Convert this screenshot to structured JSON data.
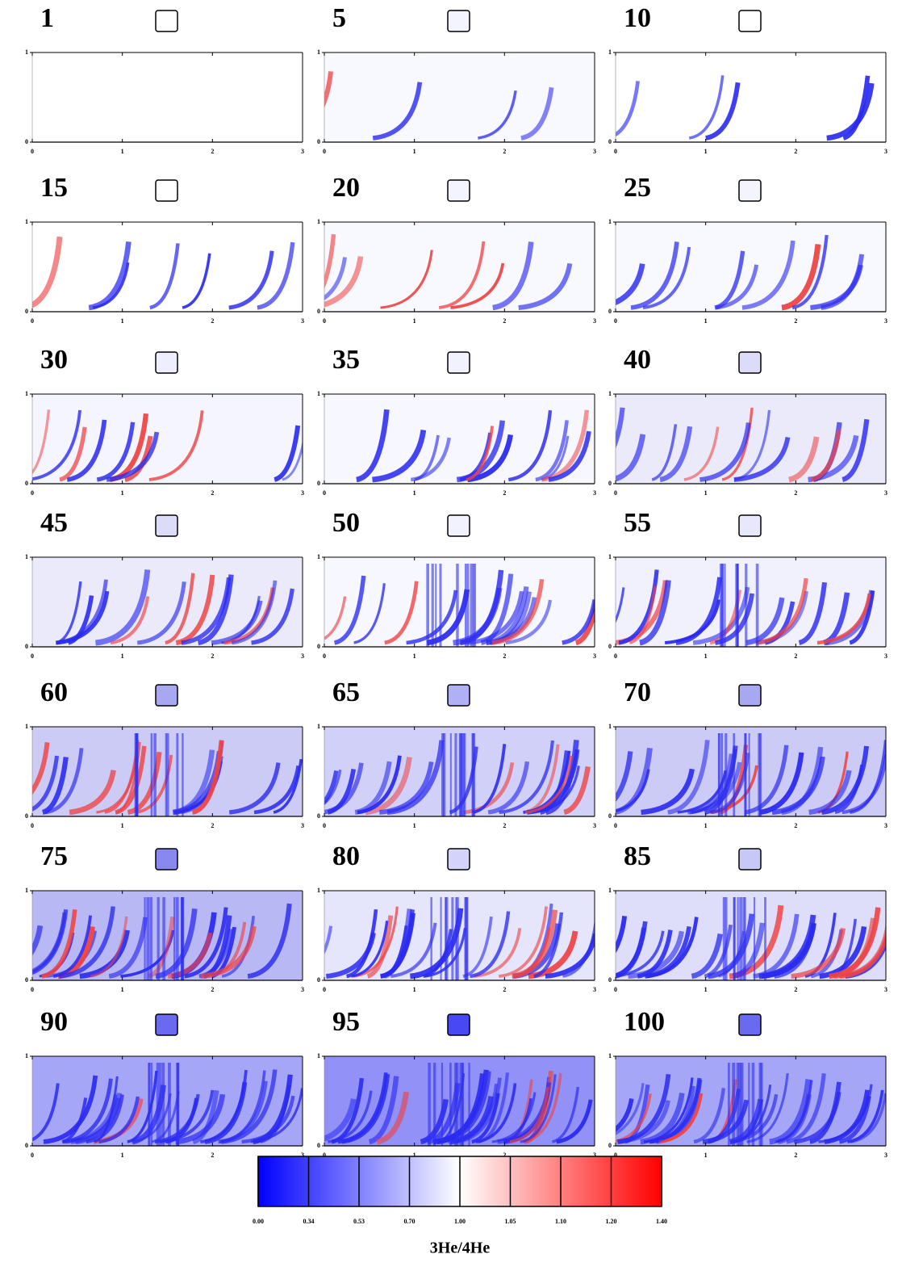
{
  "figure": {
    "panels": [
      {
        "label": "1",
        "swatch": "#ffffff",
        "xticks": [
          0,
          1,
          2,
          3
        ],
        "yticks": [
          0,
          1
        ]
      },
      {
        "label": "5",
        "swatch": "#f4f4ff",
        "xticks": [
          0,
          1,
          2,
          3
        ],
        "yticks": [
          0,
          1
        ]
      },
      {
        "label": "10",
        "swatch": "#ffffff",
        "xticks": [
          0,
          1,
          2,
          3
        ],
        "yticks": [
          0,
          1
        ]
      },
      {
        "label": "15",
        "swatch": "#ffffff",
        "xticks": [
          0,
          1,
          2,
          3
        ],
        "yticks": [
          0,
          1
        ]
      },
      {
        "label": "20",
        "swatch": "#f4f4ff",
        "xticks": [
          0,
          1,
          2,
          3
        ],
        "yticks": [
          0,
          1
        ]
      },
      {
        "label": "25",
        "swatch": "#f4f4ff",
        "xticks": [
          0,
          1,
          2,
          3
        ],
        "yticks": [
          0,
          1
        ]
      },
      {
        "label": "30",
        "swatch": "#eeeeff",
        "xticks": [
          0,
          1,
          2,
          3
        ],
        "yticks": [
          0,
          1
        ]
      },
      {
        "label": "35",
        "swatch": "#f2f2ff",
        "xticks": [
          0,
          1,
          2,
          3
        ],
        "yticks": [
          0,
          1
        ]
      },
      {
        "label": "40",
        "swatch": "#dcdcf8",
        "xticks": [
          0,
          1,
          2,
          3
        ],
        "yticks": [
          0,
          1
        ]
      },
      {
        "label": "45",
        "swatch": "#dcdcf8",
        "xticks": [
          0,
          1,
          2,
          3
        ],
        "yticks": [
          0,
          1
        ]
      },
      {
        "label": "50",
        "swatch": "#f2f2ff",
        "xticks": [
          0,
          1,
          2,
          3
        ],
        "yticks": [
          0,
          1
        ]
      },
      {
        "label": "55",
        "swatch": "#e8e8fc",
        "xticks": [
          0,
          1,
          2,
          3
        ],
        "yticks": [
          0,
          1
        ]
      },
      {
        "label": "60",
        "swatch": "#a8a8f0",
        "xticks": [
          0,
          1,
          2,
          3
        ],
        "yticks": [
          0,
          1
        ]
      },
      {
        "label": "65",
        "swatch": "#b0b0f4",
        "xticks": [
          0,
          1,
          2,
          3
        ],
        "yticks": [
          0,
          1
        ]
      },
      {
        "label": "70",
        "swatch": "#a8a8f0",
        "xticks": [
          0,
          1,
          2,
          3
        ],
        "yticks": [
          0,
          1
        ]
      },
      {
        "label": "75",
        "swatch": "#8888ee",
        "xticks": [
          0,
          1,
          2,
          3
        ],
        "yticks": [
          0,
          1
        ]
      },
      {
        "label": "80",
        "swatch": "#d4d4fa",
        "xticks": [
          0,
          1,
          2,
          3
        ],
        "yticks": [
          0,
          1
        ]
      },
      {
        "label": "85",
        "swatch": "#c8c8f6",
        "xticks": [
          0,
          1,
          2,
          3
        ],
        "yticks": [
          0,
          1
        ]
      },
      {
        "label": "90",
        "swatch": "#6a6af0",
        "xticks": [
          0,
          1,
          2,
          3
        ],
        "yticks": [
          0,
          1
        ]
      },
      {
        "label": "95",
        "swatch": "#4848f4",
        "xticks": [
          0,
          1,
          2,
          3
        ],
        "yticks": [
          0,
          1
        ]
      },
      {
        "label": "100",
        "swatch": "#6a6af0",
        "xticks": [
          0,
          1,
          2,
          3
        ],
        "yticks": [
          0,
          1
        ]
      }
    ],
    "colorbar": {
      "label": "3He/4He",
      "ticks": [
        "0.00",
        "0.34",
        "0.53",
        "0.70",
        "1.00",
        "1.05",
        "1.10",
        "1.20",
        "1.40"
      ],
      "colors": [
        "#0000ff",
        "#4040ff",
        "#8080ff",
        "#c0c0ff",
        "#ffffff",
        "#ffc0c0",
        "#ff8080",
        "#ff4040",
        "#ff0000"
      ]
    }
  }
}
